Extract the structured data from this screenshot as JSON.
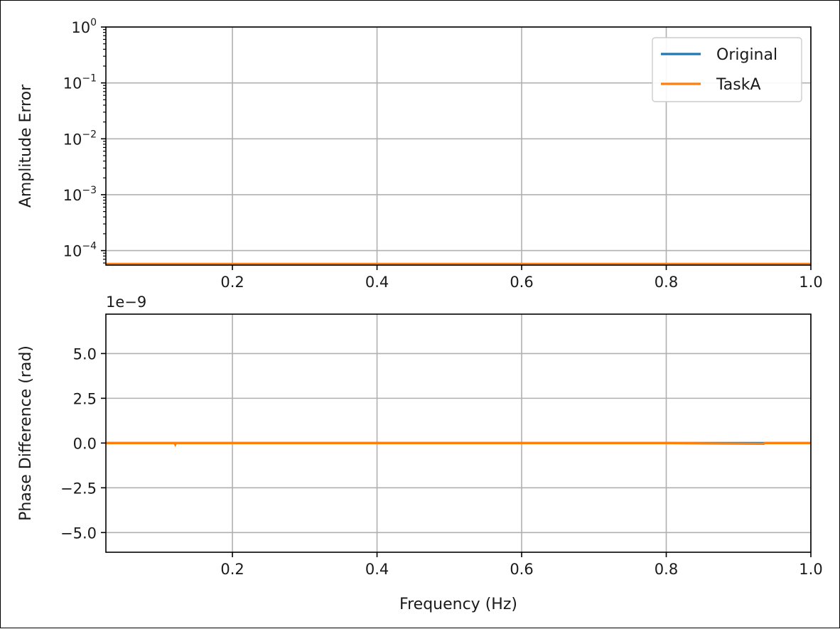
{
  "chart_data": [
    {
      "type": "line",
      "title": "",
      "xlabel": "",
      "ylabel": "Amplitude Error",
      "yscale": "log",
      "xlim": [
        0.025,
        1.0
      ],
      "ylim": [
        5.5e-05,
        1.0
      ],
      "grid": true,
      "x_ticks": [
        {
          "value": 0.2,
          "label": "0.2"
        },
        {
          "value": 0.4,
          "label": "0.4"
        },
        {
          "value": 0.6,
          "label": "0.6"
        },
        {
          "value": 0.8,
          "label": "0.8"
        },
        {
          "value": 1.0,
          "label": "1.0"
        }
      ],
      "y_ticks": [
        {
          "value": 1,
          "base": "10",
          "exp": "0"
        },
        {
          "value": 0.1,
          "base": "10",
          "exp": "−1"
        },
        {
          "value": 0.01,
          "base": "10",
          "exp": "−2"
        },
        {
          "value": 0.001,
          "base": "10",
          "exp": "−3"
        },
        {
          "value": 0.0001,
          "base": "10",
          "exp": "−4"
        }
      ],
      "legend": {
        "location": "upper right"
      },
      "series": [
        {
          "name": "Original",
          "color": "#1f77b4",
          "x": [
            0.025,
            0.2,
            0.4,
            0.6,
            0.8,
            1.0
          ],
          "y": [
            5.75e-05,
            5.75e-05,
            5.75e-05,
            5.75e-05,
            5.75e-05,
            5.75e-05
          ]
        },
        {
          "name": "TaskA",
          "color": "#ff7f0e",
          "x": [
            0.025,
            0.2,
            0.4,
            0.6,
            0.8,
            1.0
          ],
          "y": [
            5.75e-05,
            5.75e-05,
            5.75e-05,
            5.75e-05,
            5.75e-05,
            5.75e-05
          ]
        }
      ]
    },
    {
      "type": "line",
      "title": "",
      "xlabel": "Frequency (Hz)",
      "ylabel": "Phase Difference (rad)",
      "offset_label": "1e−9",
      "xlim": [
        0.025,
        1.0
      ],
      "ylim": [
        -6.1,
        7.2
      ],
      "grid": true,
      "x_ticks": [
        {
          "value": 0.2,
          "label": "0.2"
        },
        {
          "value": 0.4,
          "label": "0.4"
        },
        {
          "value": 0.6,
          "label": "0.6"
        },
        {
          "value": 0.8,
          "label": "0.8"
        },
        {
          "value": 1.0,
          "label": "1.0"
        }
      ],
      "y_ticks": [
        {
          "value": 5.0,
          "label": "5.0"
        },
        {
          "value": 2.5,
          "label": "2.5"
        },
        {
          "value": 0.0,
          "label": "0.0"
        },
        {
          "value": -2.5,
          "label": "−2.5"
        },
        {
          "value": -5.0,
          "label": "−5.0"
        }
      ],
      "series": [
        {
          "name": "Original",
          "color": "#1f77b4",
          "x": [
            0.025,
            0.2,
            0.4,
            0.6,
            0.8,
            1.0
          ],
          "y": [
            0,
            0,
            0,
            0,
            0,
            0
          ]
        },
        {
          "name": "TaskA",
          "color": "#ff7f0e",
          "x": [
            0.025,
            0.12,
            0.121,
            0.122,
            0.2,
            0.4,
            0.6,
            0.8,
            0.935,
            0.936,
            1.0
          ],
          "y": [
            0,
            0,
            -0.08,
            0,
            0,
            0,
            0,
            0,
            -0.04,
            0,
            0
          ]
        }
      ]
    }
  ]
}
